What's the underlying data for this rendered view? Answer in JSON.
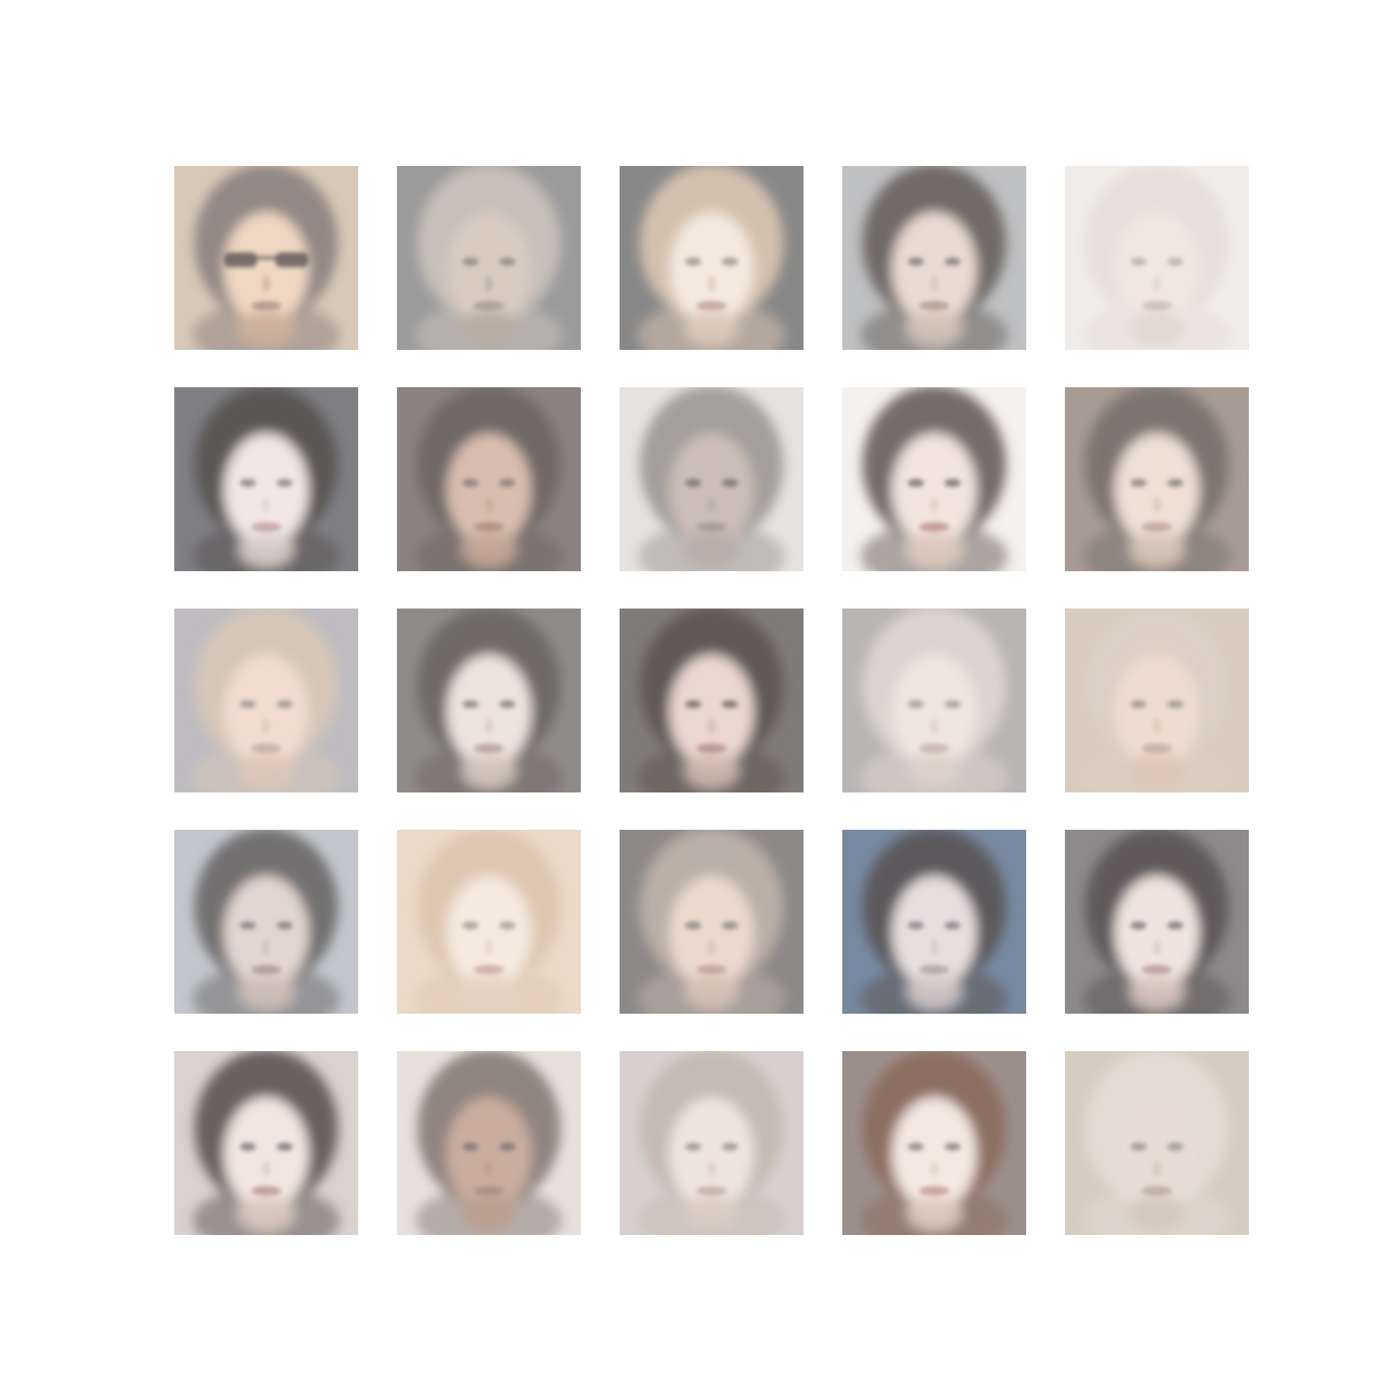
{
  "grid": {
    "rows": 5,
    "cols": 5,
    "faces": [
      {
        "bg": "#d8c8b8",
        "hair": "#8f8480",
        "skin": "#eed8c4",
        "feature": "#6a6262",
        "shade": "#cdb29c",
        "lips": "#b69b90",
        "glasses": true
      },
      {
        "bg": "#9b9b9b",
        "hair": "#c8c2bb",
        "skin": "#d9cbc0",
        "feature": "#918a87",
        "shade": "#b8aca2",
        "lips": "#ad9f99",
        "glasses": false
      },
      {
        "bg": "#888888",
        "hair": "#d8c3b0",
        "skin": "#f5e8de",
        "feature": "#9e9590",
        "shade": "#ddcabb",
        "lips": "#c5aaa1",
        "glasses": false
      },
      {
        "bg": "#bfc0c2",
        "hair": "#6b6663",
        "skin": "#eadad1",
        "feature": "#85807c",
        "shade": "#d6c4b8",
        "lips": "#b7a19a",
        "glasses": false
      },
      {
        "bg": "#f0ece9",
        "hair": "#e5dfda",
        "skin": "#f2e7e0",
        "feature": "#b8b0aa",
        "shade": "#e2d7cf",
        "lips": "#d0bfb8",
        "glasses": false
      },
      {
        "bg": "#7f7f84",
        "hair": "#5a5453",
        "skin": "#f1e7e5",
        "feature": "#8d8787",
        "shade": "#ddd1cc",
        "lips": "#c7aba8",
        "glasses": false
      },
      {
        "bg": "#8a8280",
        "hair": "#6f6764",
        "skin": "#d7beb0",
        "feature": "#8b7f79",
        "shade": "#c7aa9a",
        "lips": "#b59184",
        "glasses": false
      },
      {
        "bg": "#e6e2e0",
        "hair": "#9f9c99",
        "skin": "#ccbeb6",
        "feature": "#7c7572",
        "shade": "#b9aca6",
        "lips": "#a99b97",
        "glasses": false
      },
      {
        "bg": "#f4f1ef",
        "hair": "#6f6461",
        "skin": "#f3e4dd",
        "feature": "#7c7170",
        "shade": "#dfcbbf",
        "lips": "#c39d98",
        "glasses": false
      },
      {
        "bg": "#a79b93",
        "hair": "#7b726d",
        "skin": "#efdfd5",
        "feature": "#8e8580",
        "shade": "#d9c6ba",
        "lips": "#c3aaa1",
        "glasses": false
      },
      {
        "bg": "#bebcc0",
        "hair": "#d7c7b6",
        "skin": "#f0ddd0",
        "feature": "#a09892",
        "shade": "#ddc7b8",
        "lips": "#c8b2aa",
        "glasses": false
      },
      {
        "bg": "#8f8b89",
        "hair": "#6d6866",
        "skin": "#efe3dd",
        "feature": "#8c8684",
        "shade": "#d8c8bf",
        "lips": "#bea8a1",
        "glasses": false
      },
      {
        "bg": "#7f7b79",
        "hair": "#5f5654",
        "skin": "#ead7cf",
        "feature": "#7d716e",
        "shade": "#d2bbb0",
        "lips": "#b99791",
        "glasses": false
      },
      {
        "bg": "#b8b5b4",
        "hair": "#ddd6d0",
        "skin": "#f0e5df",
        "feature": "#a79f9b",
        "shade": "#ddd0c8",
        "lips": "#c9b7b0",
        "glasses": false
      },
      {
        "bg": "#d9cbbd",
        "hair": "#ddd0c5",
        "skin": "#efdcd0",
        "feature": "#9f9691",
        "shade": "#dcc6b7",
        "lips": "#c7b0a7",
        "glasses": false
      },
      {
        "bg": "#c3c7cc",
        "hair": "#6f6b6c",
        "skin": "#e3d6d0",
        "feature": "#8a8483",
        "shade": "#d0c0b8",
        "lips": "#b49f99",
        "glasses": false
      },
      {
        "bg": "#ead9c8",
        "hair": "#dcc7b2",
        "skin": "#f6e9df",
        "feature": "#a89f98",
        "shade": "#e5d3c5",
        "lips": "#cfb1a7",
        "glasses": false
      },
      {
        "bg": "#8d8989",
        "hair": "#bdb1a8",
        "skin": "#ecd9ce",
        "feature": "#918883",
        "shade": "#d7c2b5",
        "lips": "#c3a69d",
        "glasses": false
      },
      {
        "bg": "#7789a0",
        "hair": "#5b5658",
        "skin": "#e7dfdf",
        "feature": "#8a8587",
        "shade": "#d2c9c8",
        "lips": "#b9aaa9",
        "glasses": false
      },
      {
        "bg": "#8c8a8b",
        "hair": "#5c5758",
        "skin": "#f1e4df",
        "feature": "#827c7b",
        "shade": "#d9c8c0",
        "lips": "#bea4a0",
        "glasses": false
      },
      {
        "bg": "#dad2ce",
        "hair": "#625b5a",
        "skin": "#f3e6e0",
        "feature": "#807a79",
        "shade": "#ddcac1",
        "lips": "#c29f99",
        "glasses": false
      },
      {
        "bg": "#e7e1de",
        "hair": "#8b7f79",
        "skin": "#c9aea0",
        "feature": "#7f7571",
        "shade": "#b99e90",
        "lips": "#ab8f85",
        "glasses": false
      },
      {
        "bg": "#d6d1ce",
        "hair": "#c4b9b1",
        "skin": "#f0e4de",
        "feature": "#9e9692",
        "shade": "#dbcbc3",
        "lips": "#c8b3ab",
        "glasses": false
      },
      {
        "bg": "#9c8f8a",
        "hair": "#8b6d5f",
        "skin": "#f5e8e1",
        "feature": "#918783",
        "shade": "#e0cdc2",
        "lips": "#c8a49c",
        "glasses": false
      },
      {
        "bg": "#d7ccc1",
        "hair": "#e4dbd3",
        "skin": "#e8dcd4",
        "feature": "#9d9692",
        "shade": "#d5c6bc",
        "lips": "#c0ada6",
        "glasses": false
      }
    ]
  }
}
